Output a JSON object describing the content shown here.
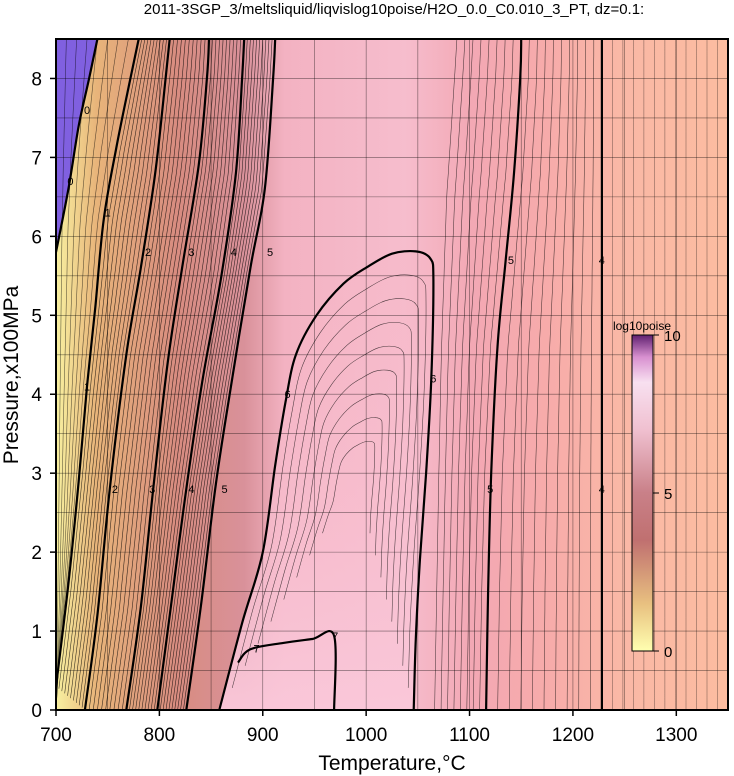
{
  "chart_data": {
    "type": "heatmap",
    "title": "2011-3SGP_3/meltsliquid/liqvislog10poise/H2O_0.0_C0.010_3_PT, dz=0.1:",
    "xlabel": "Temperature,°C",
    "ylabel": "Pressure,x100MPa",
    "xlim": [
      700,
      1350
    ],
    "ylim": [
      0,
      8.5
    ],
    "x_ticks": [
      700,
      800,
      900,
      1000,
      1100,
      1200,
      1300
    ],
    "y_ticks": [
      0,
      1,
      2,
      3,
      4,
      5,
      6,
      7,
      8
    ],
    "grid": true,
    "z_name": "log10poise",
    "z_range": [
      0,
      10
    ],
    "colorbar_ticks": [
      0,
      5,
      10
    ],
    "colorbar_placement": "right-inside",
    "colors": {
      "low": "#f9f4a4",
      "mid": "#d88c80",
      "high_trough": "#f7c2d2",
      "right_plateau": "#fcbca0",
      "below_zero": "#8060e0"
    },
    "major_contours": [
      {
        "level": 0,
        "label": "0",
        "points": [
          [
            700,
            5.8
          ],
          [
            712,
            6.6
          ],
          [
            722,
            7.4
          ],
          [
            732,
            8.0
          ],
          [
            740,
            8.5
          ]
        ]
      },
      {
        "level": 1,
        "label": "1",
        "points": [
          [
            700,
            0.3
          ],
          [
            712,
            1.6
          ],
          [
            722,
            2.9
          ],
          [
            730,
            4.1
          ],
          [
            738,
            5.1
          ],
          [
            746,
            6.2
          ],
          [
            758,
            7.1
          ],
          [
            772,
            8.0
          ],
          [
            780,
            8.5
          ]
        ]
      },
      {
        "level": 2,
        "label": "2",
        "points": [
          [
            728,
            0.0
          ],
          [
            740,
            1.2
          ],
          [
            752,
            2.8
          ],
          [
            768,
            4.5
          ],
          [
            782,
            5.6
          ],
          [
            796,
            6.8
          ],
          [
            806,
            8.0
          ],
          [
            810,
            8.5
          ]
        ]
      },
      {
        "level": 3,
        "label": "3",
        "points": [
          [
            768,
            0.0
          ],
          [
            782,
            1.3
          ],
          [
            794,
            2.8
          ],
          [
            808,
            4.4
          ],
          [
            822,
            5.6
          ],
          [
            838,
            6.9
          ],
          [
            846,
            8.0
          ],
          [
            848,
            8.5
          ]
        ]
      },
      {
        "level": 4,
        "label": "4",
        "points": [
          [
            798,
            0.0
          ],
          [
            812,
            1.4
          ],
          [
            826,
            2.8
          ],
          [
            842,
            4.2
          ],
          [
            860,
            5.5
          ],
          [
            874,
            6.8
          ],
          [
            880,
            8.0
          ],
          [
            882,
            8.5
          ]
        ]
      },
      {
        "level": 5,
        "label": "5",
        "points": [
          [
            826,
            0.0
          ],
          [
            840,
            1.3
          ],
          [
            854,
            2.8
          ],
          [
            868,
            4.0
          ],
          [
            888,
            5.6
          ],
          [
            902,
            6.6
          ],
          [
            910,
            8.0
          ],
          [
            912,
            8.5
          ]
        ]
      },
      {
        "level": 6,
        "label": "6",
        "points": [
          [
            858,
            0.0
          ],
          [
            880,
            1.1
          ],
          [
            900,
            2.0
          ],
          [
            912,
            3.1
          ],
          [
            922,
            3.9
          ],
          [
            932,
            4.5
          ],
          [
            952,
            5.0
          ],
          [
            978,
            5.4
          ],
          [
            1002,
            5.62
          ],
          [
            1025,
            5.78
          ],
          [
            1048,
            5.81
          ],
          [
            1062,
            5.72
          ],
          [
            1065,
            5.45
          ],
          [
            1063,
            4.2
          ],
          [
            1058,
            3.0
          ],
          [
            1052,
            1.9
          ],
          [
            1048,
            0.9
          ],
          [
            1046,
            0.0
          ]
        ]
      },
      {
        "level": 7,
        "label": "7",
        "points": [
          [
            876,
            0.6
          ],
          [
            888,
            0.77
          ],
          [
            920,
            0.85
          ],
          [
            948,
            0.9
          ],
          [
            969,
            0.94
          ],
          [
            969,
            0.0
          ]
        ]
      },
      {
        "level": 5,
        "label": "5",
        "points": [
          [
            1116,
            0.0
          ],
          [
            1118,
            1.5
          ],
          [
            1121,
            3.0
          ],
          [
            1127,
            4.6
          ],
          [
            1135,
            5.7
          ],
          [
            1143,
            6.8
          ],
          [
            1149,
            8.0
          ],
          [
            1150,
            8.5
          ]
        ]
      },
      {
        "level": 4,
        "label": "4",
        "points": [
          [
            1228,
            0.0
          ],
          [
            1228,
            2.5
          ],
          [
            1228,
            5.5
          ],
          [
            1228,
            8.5
          ]
        ]
      }
    ],
    "contour_labels": [
      {
        "text": "0",
        "x": 714,
        "y": 6.7
      },
      {
        "text": "0",
        "x": 730,
        "y": 7.6
      },
      {
        "text": "1",
        "x": 730,
        "y": 4.1
      },
      {
        "text": "1",
        "x": 750,
        "y": 6.3
      },
      {
        "text": "2",
        "x": 757,
        "y": 2.8
      },
      {
        "text": "2",
        "x": 789,
        "y": 5.8
      },
      {
        "text": "3",
        "x": 793,
        "y": 2.8
      },
      {
        "text": "3",
        "x": 831,
        "y": 5.8
      },
      {
        "text": "4",
        "x": 831,
        "y": 2.8
      },
      {
        "text": "4",
        "x": 872,
        "y": 5.8
      },
      {
        "text": "5",
        "x": 863,
        "y": 2.8
      },
      {
        "text": "5",
        "x": 907,
        "y": 5.8
      },
      {
        "text": "6",
        "x": 924,
        "y": 4.0
      },
      {
        "text": "6",
        "x": 1065,
        "y": 4.2
      },
      {
        "text": "7",
        "x": 894,
        "y": 0.78
      },
      {
        "text": "7",
        "x": 970,
        "y": 0.94
      },
      {
        "text": "5",
        "x": 1120,
        "y": 2.8
      },
      {
        "text": "5",
        "x": 1140,
        "y": 5.7
      },
      {
        "text": "4",
        "x": 1228,
        "y": 2.8
      },
      {
        "text": "4",
        "x": 1228,
        "y": 5.7
      }
    ]
  }
}
